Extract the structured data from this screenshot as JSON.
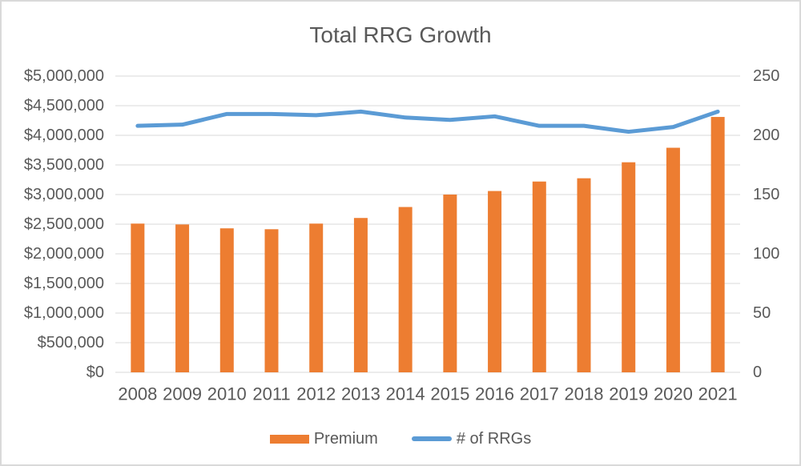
{
  "chart_data": {
    "type": "combo-bar-line",
    "title": "Total RRG Growth",
    "categories": [
      "2008",
      "2009",
      "2010",
      "2011",
      "2012",
      "2013",
      "2014",
      "2015",
      "2016",
      "2017",
      "2018",
      "2019",
      "2020",
      "2021"
    ],
    "series": [
      {
        "name": "Premium",
        "type": "bar",
        "axis": "left",
        "color": "#ED7D31",
        "values": [
          2510000,
          2495000,
          2430000,
          2415000,
          2510000,
          2605000,
          2790000,
          3000000,
          3060000,
          3220000,
          3275000,
          3545000,
          3790000,
          4310000
        ]
      },
      {
        "name": "# of RRGs",
        "type": "line",
        "axis": "right",
        "color": "#5B9BD5",
        "values": [
          208,
          209,
          218,
          218,
          217,
          220,
          215,
          213,
          216,
          208,
          208,
          203,
          207,
          220
        ]
      }
    ],
    "left_axis": {
      "min": 0,
      "max": 5000000,
      "step": 500000,
      "tick_labels": [
        "$5,000,000",
        "$4,500,000",
        "$4,000,000",
        "$3,500,000",
        "$3,000,000",
        "$2,500,000",
        "$2,000,000",
        "$1,500,000",
        "$1,000,000",
        "$500,000",
        "$0"
      ]
    },
    "right_axis": {
      "min": 0,
      "max": 250,
      "step": 50,
      "tick_labels": [
        "250",
        "200",
        "150",
        "100",
        "50",
        "0"
      ]
    },
    "grid": true,
    "legend_position": "bottom",
    "text_color": "#595959",
    "grid_color": "#D9D9D9"
  }
}
